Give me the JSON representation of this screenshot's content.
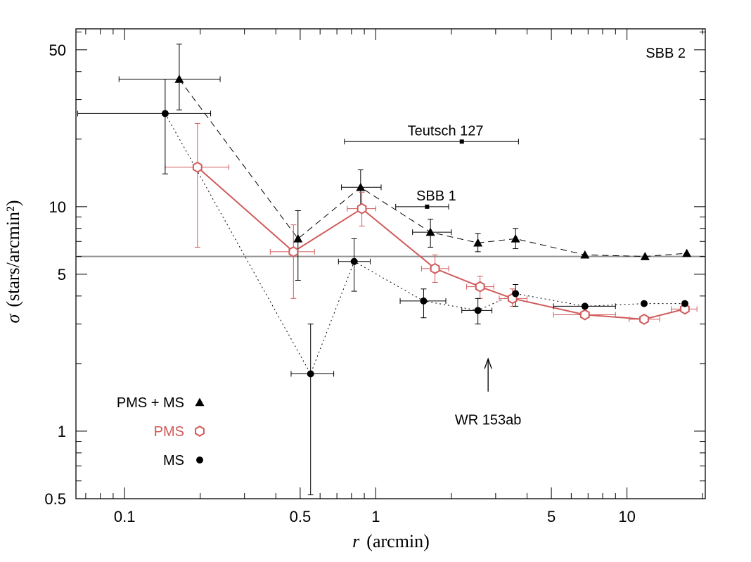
{
  "chart_data": {
    "type": "scatter",
    "title": "SBB 2",
    "xlabel_var": "r",
    "xlabel_unit": "(arcmin)",
    "ylabel_var": "σ",
    "ylabel_unit": "(stars/arcmin²)",
    "xscale": "log",
    "yscale": "log",
    "xlim": [
      0.064,
      20.5
    ],
    "ylim": [
      0.5,
      62
    ],
    "x_ticks": [
      {
        "v": 0.1,
        "label": "0.1"
      },
      {
        "v": 0.5,
        "label": "0.5"
      },
      {
        "v": 1,
        "label": "1"
      },
      {
        "v": 5,
        "label": "5"
      },
      {
        "v": 10,
        "label": "10"
      }
    ],
    "y_ticks": [
      {
        "v": 0.5,
        "label": "0.5"
      },
      {
        "v": 1,
        "label": "1"
      },
      {
        "v": 5,
        "label": "5"
      },
      {
        "v": 10,
        "label": "10"
      },
      {
        "v": 50,
        "label": "50"
      }
    ],
    "reference_line": {
      "y": 6.0,
      "color": "#909090"
    },
    "colors": {
      "pms_ms": "#000000",
      "pms": "#d05a5a",
      "ms": "#000000",
      "line": "#000000"
    },
    "series": [
      {
        "name": "PMS + MS",
        "marker": "triangle",
        "line_style": "dashed",
        "points": [
          {
            "x": 0.165,
            "y": 37,
            "xerr": [
              0.095,
              0.24
            ],
            "yerr": [
              27,
              53
            ]
          },
          {
            "x": 0.49,
            "y": 7.2,
            "xerr": null,
            "yerr": [
              4.7,
              9.6
            ]
          },
          {
            "x": 0.87,
            "y": 12.2,
            "xerr": [
              0.73,
              1.05
            ],
            "yerr": [
              9.7,
              14.6
            ]
          },
          {
            "x": 1.65,
            "y": 7.7,
            "xerr": [
              1.4,
              2.0
            ],
            "yerr": [
              6.6,
              8.8
            ]
          },
          {
            "x": 2.55,
            "y": 6.9,
            "xerr": null,
            "yerr": [
              6.3,
              7.6
            ]
          },
          {
            "x": 3.6,
            "y": 7.2,
            "xerr": null,
            "yerr": [
              6.5,
              8.0
            ]
          },
          {
            "x": 6.8,
            "y": 6.1,
            "xerr": null,
            "yerr": null
          },
          {
            "x": 11.8,
            "y": 6.0,
            "xerr": null,
            "yerr": null
          },
          {
            "x": 17.3,
            "y": 6.2,
            "xerr": null,
            "yerr": null
          }
        ]
      },
      {
        "name": "PMS",
        "marker": "hexagon-open",
        "line_style": "solid",
        "points": [
          {
            "x": 0.195,
            "y": 15,
            "xerr": [
              0.145,
              0.26
            ],
            "yerr": [
              6.6,
              23.5
            ]
          },
          {
            "x": 0.47,
            "y": 6.3,
            "xerr": [
              0.38,
              0.57
            ],
            "yerr": [
              3.9,
              8.3
            ]
          },
          {
            "x": 0.88,
            "y": 9.8,
            "xerr": [
              0.77,
              1.0
            ],
            "yerr": [
              8.2,
              11.6
            ]
          },
          {
            "x": 1.72,
            "y": 5.3,
            "xerr": [
              1.52,
              1.95
            ],
            "yerr": [
              4.6,
              6.1
            ]
          },
          {
            "x": 2.6,
            "y": 4.4,
            "xerr": [
              2.3,
              2.95
            ],
            "yerr": [
              3.9,
              4.9
            ]
          },
          {
            "x": 3.5,
            "y": 3.9,
            "xerr": [
              3.1,
              4.0
            ],
            "yerr": [
              3.6,
              4.3
            ]
          },
          {
            "x": 6.8,
            "y": 3.3,
            "xerr": [
              5.1,
              9.0
            ],
            "yerr": null
          },
          {
            "x": 11.7,
            "y": 3.15,
            "xerr": [
              10.2,
              13.5
            ],
            "yerr": null
          },
          {
            "x": 17.0,
            "y": 3.5,
            "xerr": [
              15.0,
              19.0
            ],
            "yerr": null
          }
        ]
      },
      {
        "name": "MS",
        "marker": "circle",
        "line_style": "dotted",
        "points": [
          {
            "x": 0.145,
            "y": 26,
            "xerr": [
              0.065,
              0.22
            ],
            "yerr": [
              14,
              37
            ]
          },
          {
            "x": 0.55,
            "y": 1.8,
            "xerr": [
              0.46,
              0.68
            ],
            "yerr": [
              0.52,
              3.0
            ]
          },
          {
            "x": 0.82,
            "y": 5.7,
            "xerr": [
              0.71,
              0.95
            ],
            "yerr": [
              4.2,
              7.2
            ]
          },
          {
            "x": 1.55,
            "y": 3.8,
            "xerr": [
              1.25,
              1.9
            ],
            "yerr": [
              3.2,
              4.3
            ]
          },
          {
            "x": 2.55,
            "y": 3.45,
            "xerr": [
              2.2,
              2.9
            ],
            "yerr": [
              3.0,
              3.9
            ]
          },
          {
            "x": 3.6,
            "y": 4.1,
            "xerr": null,
            "yerr": [
              3.6,
              4.5
            ]
          },
          {
            "x": 6.8,
            "y": 3.6,
            "xerr": [
              5.1,
              9.0
            ],
            "yerr": null
          },
          {
            "x": 11.7,
            "y": 3.7,
            "xerr": null,
            "yerr": null
          },
          {
            "x": 17.0,
            "y": 3.7,
            "xerr": null,
            "yerr": null
          }
        ]
      }
    ],
    "clusters": [
      {
        "name": "Teutsch 127",
        "x": 2.2,
        "y": 19.5,
        "xerr": [
          0.75,
          3.7
        ]
      },
      {
        "name": "SBB 1",
        "x": 1.6,
        "y": 10.0,
        "xerr": [
          1.2,
          1.95
        ]
      }
    ],
    "annotation": {
      "text": "WR 153ab",
      "x": 2.8,
      "y_tip": 2.1,
      "y_tail": 1.5,
      "y_text": 1.07
    },
    "legend": [
      {
        "label": "PMS + MS",
        "marker": "triangle",
        "color": "#000000"
      },
      {
        "label": "PMS",
        "marker": "hexagon-open",
        "color": "#d05a5a"
      },
      {
        "label": "MS",
        "marker": "circle",
        "color": "#000000"
      }
    ]
  }
}
